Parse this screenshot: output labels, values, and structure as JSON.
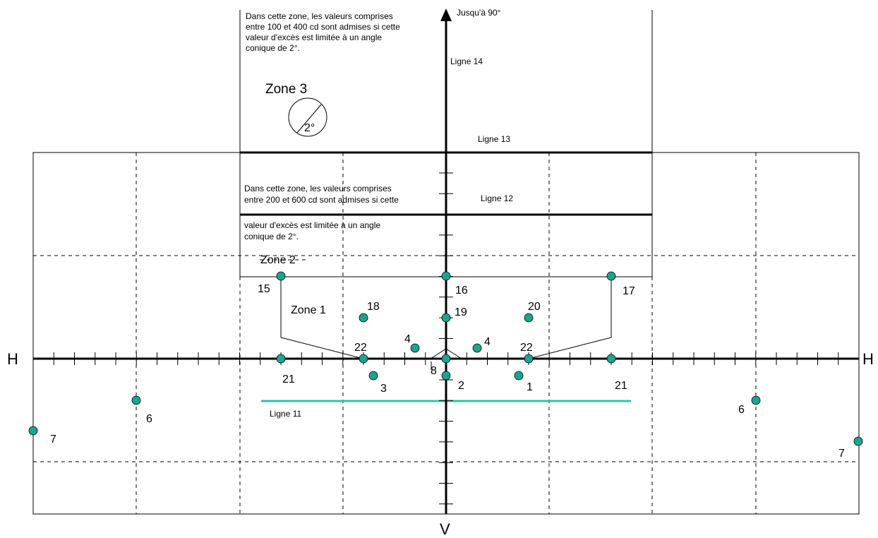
{
  "axes": {
    "h_left": "H",
    "h_right": "H",
    "v_bottom": "V",
    "up_arrow_label": "Jusqu'à 90°"
  },
  "lines": {
    "ligne14": "Ligne 14",
    "ligne13": "Ligne 13",
    "ligne12": "Ligne 12",
    "ligne11": "Ligne 11"
  },
  "zone3": {
    "note": [
      "Dans cette zone, les valeurs comprises",
      "entre 100 et 400 cd sont admises si cette",
      "valeur d'excès est limitée à un angle",
      "conique de 2°."
    ],
    "title": "Zone 3",
    "cone": "2°"
  },
  "zone2": {
    "note_top": [
      "Dans cette zone, les valeurs comprises",
      "entre 200 et 600 cd sont admises si cette"
    ],
    "note_bottom": [
      "valeur d'excès est limitée à un angle",
      "conique de 2°."
    ],
    "title": "Zone 2"
  },
  "zone1": {
    "title": "Zone 1"
  },
  "point_labels": {
    "p15": "15",
    "p16": "16",
    "p17": "17",
    "p18": "18",
    "p19": "19",
    "p20": "20",
    "p4l": "4",
    "p4r": "4",
    "p22l": "22",
    "p22r": "22",
    "p21l": "21",
    "p21r": "21",
    "p8": "8",
    "p3": "3",
    "p2": "2",
    "p1": "1",
    "p6l": "6",
    "p6r": "6",
    "p7l": "7",
    "p7r": "7"
  },
  "colors": {
    "point": "#1aa58c",
    "ligne11": "#2ec4a4",
    "stroke": "#000000"
  }
}
